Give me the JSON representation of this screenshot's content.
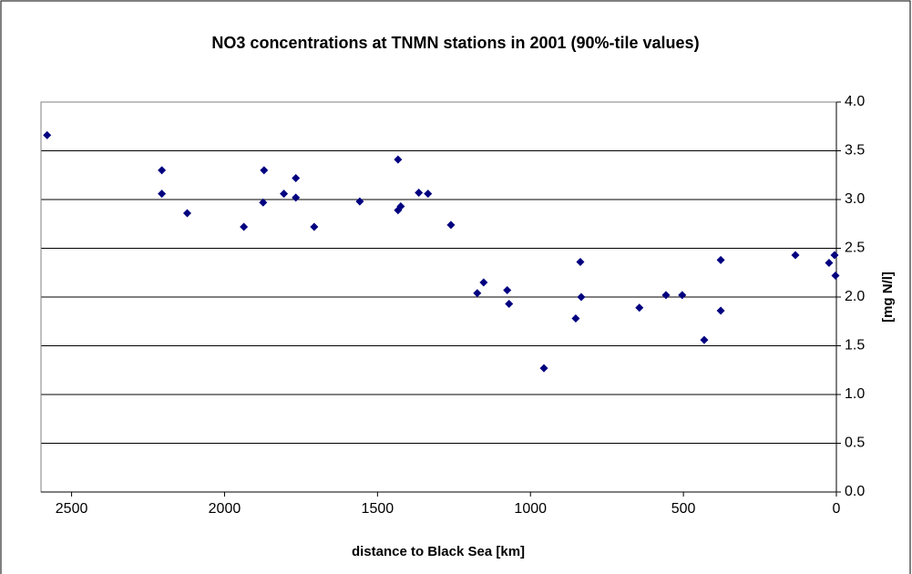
{
  "chart_data": {
    "type": "scatter",
    "title": "NO3 concentrations at TNMN stations in 2001 (90%-tile values)",
    "x_label": "distance to Black Sea [km]",
    "y_label": "[mg N/l]",
    "xlim": [
      2600,
      0
    ],
    "xticks": [
      2500,
      2000,
      1500,
      1000,
      500,
      0
    ],
    "ylim": [
      0,
      4
    ],
    "yticks": [
      {
        "value": 0,
        "label": "0.0"
      },
      0.5,
      {
        "value": 1,
        "label": "1.0"
      },
      1.5,
      {
        "value": 2,
        "label": "2.0"
      },
      2.5,
      {
        "value": 3,
        "label": "3.0"
      },
      3.5,
      {
        "value": 4,
        "label": "4.0"
      }
    ],
    "y_axis_side": "right",
    "grid": true,
    "color": "#000080",
    "x": [
      2580,
      2205,
      2205,
      2122,
      1937,
      1874,
      1871,
      1806,
      1767,
      1767,
      1707,
      1558,
      1433,
      1433,
      1424,
      1365,
      1335,
      1260,
      1174,
      1153,
      1076,
      1070,
      956,
      852,
      837,
      834,
      644,
      557,
      504,
      432,
      378,
      378,
      134,
      24,
      6,
      3
    ],
    "values": [
      3.66,
      3.3,
      3.06,
      2.86,
      2.72,
      2.97,
      3.3,
      3.06,
      3.22,
      3.02,
      2.72,
      2.98,
      3.41,
      2.89,
      2.93,
      3.07,
      3.06,
      2.74,
      2.04,
      2.15,
      2.07,
      1.93,
      1.27,
      1.78,
      2.36,
      2.0,
      1.89,
      2.02,
      2.02,
      1.56,
      2.38,
      1.86,
      2.43,
      2.35,
      2.43,
      2.22
    ]
  }
}
